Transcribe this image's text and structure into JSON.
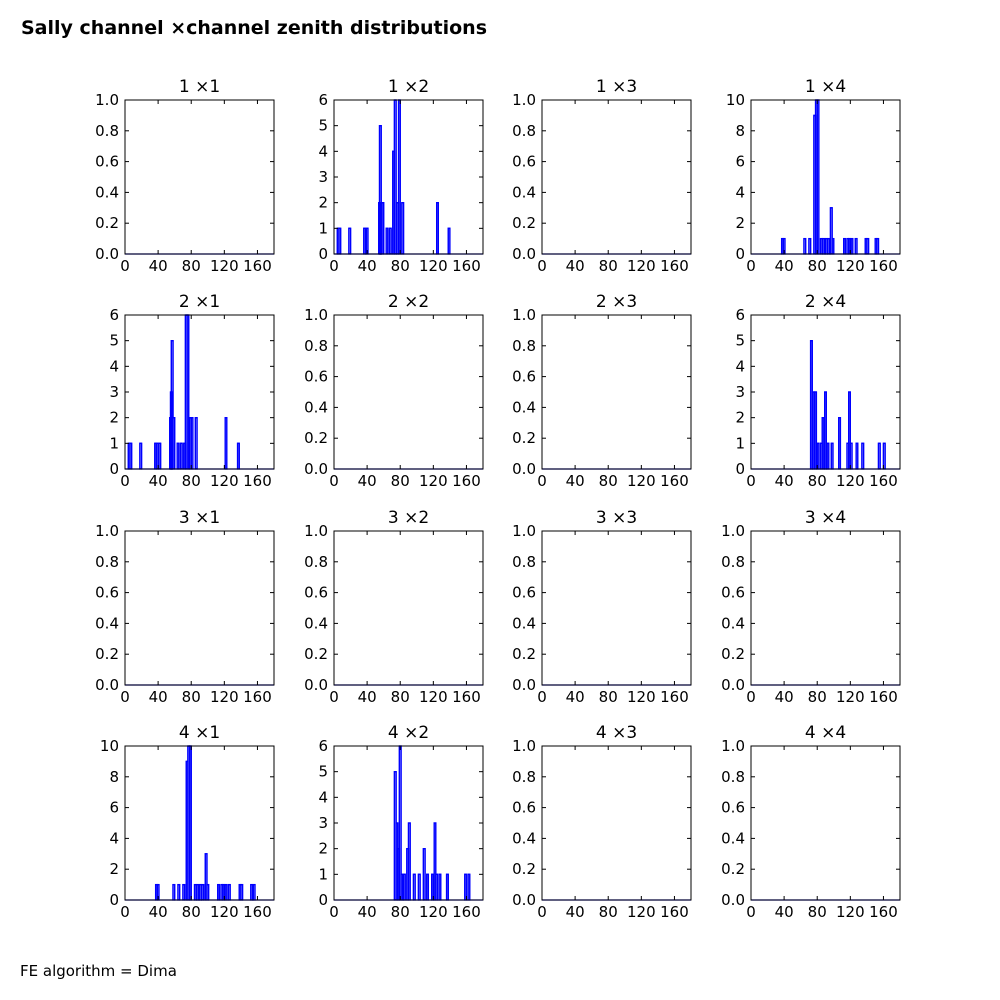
{
  "figure": {
    "title": "Sally channel ×channel zenith distributions",
    "footer": "FE algorithm = Dima",
    "series_color": "#0000ff"
  },
  "chart_data": [
    {
      "type": "histogram",
      "title": "1  ×1",
      "xticks": [
        "0",
        "40",
        "80",
        "120",
        "160"
      ],
      "xlim": [
        0,
        180
      ],
      "ylim": [
        0,
        1
      ],
      "yticks": [
        "0.0",
        "0.2",
        "0.4",
        "0.6",
        "0.8",
        "1.0"
      ],
      "bins": []
    },
    {
      "type": "histogram",
      "title": "1  ×2",
      "xticks": [
        "0",
        "40",
        "80",
        "120",
        "160"
      ],
      "xlim": [
        0,
        180
      ],
      "ylim": [
        0,
        6
      ],
      "yticks": [
        "0",
        "1",
        "2",
        "3",
        "4",
        "5",
        "6"
      ],
      "bins": [
        [
          4,
          1
        ],
        [
          6,
          1
        ],
        [
          18,
          1
        ],
        [
          36,
          1
        ],
        [
          39,
          1
        ],
        [
          54,
          2
        ],
        [
          55,
          5
        ],
        [
          56,
          2
        ],
        [
          58,
          2
        ],
        [
          63,
          1
        ],
        [
          67,
          1
        ],
        [
          71,
          4
        ],
        [
          73,
          6
        ],
        [
          76,
          2
        ],
        [
          78,
          6
        ],
        [
          82,
          2
        ],
        [
          124,
          2
        ],
        [
          138,
          1
        ]
      ]
    },
    {
      "type": "histogram",
      "title": "1  ×3",
      "xticks": [
        "0",
        "40",
        "80",
        "120",
        "160"
      ],
      "xlim": [
        0,
        180
      ],
      "ylim": [
        0,
        1
      ],
      "yticks": [
        "0.0",
        "0.2",
        "0.4",
        "0.6",
        "0.8",
        "1.0"
      ],
      "bins": []
    },
    {
      "type": "histogram",
      "title": "1  ×4",
      "xticks": [
        "0",
        "40",
        "80",
        "120",
        "160"
      ],
      "xlim": [
        0,
        180
      ],
      "ylim": [
        0,
        10
      ],
      "yticks": [
        "0",
        "2",
        "4",
        "6",
        "8",
        "10"
      ],
      "bins": [
        [
          37,
          1
        ],
        [
          39,
          1
        ],
        [
          64,
          1
        ],
        [
          70,
          1
        ],
        [
          76,
          9
        ],
        [
          78,
          10
        ],
        [
          80,
          10
        ],
        [
          84,
          1
        ],
        [
          87,
          1
        ],
        [
          90,
          1
        ],
        [
          93,
          1
        ],
        [
          96,
          3
        ],
        [
          98,
          1
        ],
        [
          112,
          1
        ],
        [
          116,
          1
        ],
        [
          118,
          1
        ],
        [
          121,
          1
        ],
        [
          126,
          1
        ],
        [
          138,
          1
        ],
        [
          140,
          1
        ],
        [
          150,
          1
        ],
        [
          152,
          1
        ]
      ]
    },
    {
      "type": "histogram",
      "title": "2  ×1",
      "xticks": [
        "0",
        "40",
        "80",
        "120",
        "160"
      ],
      "xlim": [
        0,
        180
      ],
      "ylim": [
        0,
        6
      ],
      "yticks": [
        "0",
        "1",
        "2",
        "3",
        "4",
        "5",
        "6"
      ],
      "bins": [
        [
          4,
          1
        ],
        [
          6,
          1
        ],
        [
          18,
          1
        ],
        [
          36,
          1
        ],
        [
          38,
          1
        ],
        [
          41,
          1
        ],
        [
          54,
          2
        ],
        [
          55,
          3
        ],
        [
          56,
          5
        ],
        [
          58,
          2
        ],
        [
          63,
          1
        ],
        [
          67,
          1
        ],
        [
          71,
          1
        ],
        [
          73,
          6
        ],
        [
          75,
          6
        ],
        [
          78,
          2
        ],
        [
          80,
          2
        ],
        [
          85,
          2
        ],
        [
          121,
          2
        ],
        [
          136,
          1
        ]
      ]
    },
    {
      "type": "histogram",
      "title": "2  ×2",
      "xticks": [
        "0",
        "40",
        "80",
        "120",
        "160"
      ],
      "xlim": [
        0,
        180
      ],
      "ylim": [
        0,
        1
      ],
      "yticks": [
        "0.0",
        "0.2",
        "0.4",
        "0.6",
        "0.8",
        "1.0"
      ],
      "bins": []
    },
    {
      "type": "histogram",
      "title": "2  ×3",
      "xticks": [
        "0",
        "40",
        "80",
        "120",
        "160"
      ],
      "xlim": [
        0,
        180
      ],
      "ylim": [
        0,
        1
      ],
      "yticks": [
        "0.0",
        "0.2",
        "0.4",
        "0.6",
        "0.8",
        "1.0"
      ],
      "bins": []
    },
    {
      "type": "histogram",
      "title": "2  ×4",
      "xticks": [
        "0",
        "40",
        "80",
        "120",
        "160"
      ],
      "xlim": [
        0,
        180
      ],
      "ylim": [
        0,
        6
      ],
      "yticks": [
        "0",
        "1",
        "2",
        "3",
        "4",
        "5",
        "6"
      ],
      "bins": [
        [
          72,
          5
        ],
        [
          75,
          3
        ],
        [
          77,
          3
        ],
        [
          80,
          1
        ],
        [
          84,
          1
        ],
        [
          86,
          2
        ],
        [
          89,
          3
        ],
        [
          92,
          1
        ],
        [
          97,
          1
        ],
        [
          106,
          2
        ],
        [
          116,
          1
        ],
        [
          118,
          3
        ],
        [
          120,
          1
        ],
        [
          127,
          1
        ],
        [
          134,
          1
        ],
        [
          154,
          1
        ],
        [
          160,
          1
        ]
      ]
    },
    {
      "type": "histogram",
      "title": "3  ×1",
      "xticks": [
        "0",
        "40",
        "80",
        "120",
        "160"
      ],
      "xlim": [
        0,
        180
      ],
      "ylim": [
        0,
        1
      ],
      "yticks": [
        "0.0",
        "0.2",
        "0.4",
        "0.6",
        "0.8",
        "1.0"
      ],
      "bins": []
    },
    {
      "type": "histogram",
      "title": "3  ×2",
      "xticks": [
        "0",
        "40",
        "80",
        "120",
        "160"
      ],
      "xlim": [
        0,
        180
      ],
      "ylim": [
        0,
        1
      ],
      "yticks": [
        "0.0",
        "0.2",
        "0.4",
        "0.6",
        "0.8",
        "1.0"
      ],
      "bins": []
    },
    {
      "type": "histogram",
      "title": "3  ×3",
      "xticks": [
        "0",
        "40",
        "80",
        "120",
        "160"
      ],
      "xlim": [
        0,
        180
      ],
      "ylim": [
        0,
        1
      ],
      "yticks": [
        "0.0",
        "0.2",
        "0.4",
        "0.6",
        "0.8",
        "1.0"
      ],
      "bins": []
    },
    {
      "type": "histogram",
      "title": "3  ×4",
      "xticks": [
        "0",
        "40",
        "80",
        "120",
        "160"
      ],
      "xlim": [
        0,
        180
      ],
      "ylim": [
        0,
        1
      ],
      "yticks": [
        "0.0",
        "0.2",
        "0.4",
        "0.6",
        "0.8",
        "1.0"
      ],
      "bins": []
    },
    {
      "type": "histogram",
      "title": "4  ×1",
      "xticks": [
        "0",
        "40",
        "80",
        "120",
        "160"
      ],
      "xlim": [
        0,
        180
      ],
      "ylim": [
        0,
        10
      ],
      "yticks": [
        "0",
        "2",
        "4",
        "6",
        "8",
        "10"
      ],
      "bins": [
        [
          37,
          1
        ],
        [
          39,
          1
        ],
        [
          58,
          1
        ],
        [
          64,
          1
        ],
        [
          70,
          1
        ],
        [
          74,
          9
        ],
        [
          76,
          10
        ],
        [
          78,
          10
        ],
        [
          84,
          1
        ],
        [
          87,
          1
        ],
        [
          90,
          1
        ],
        [
          93,
          1
        ],
        [
          97,
          3
        ],
        [
          99,
          1
        ],
        [
          112,
          1
        ],
        [
          116,
          1
        ],
        [
          118,
          1
        ],
        [
          121,
          1
        ],
        [
          125,
          1
        ],
        [
          138,
          1
        ],
        [
          140,
          1
        ],
        [
          152,
          1
        ],
        [
          155,
          1
        ]
      ]
    },
    {
      "type": "histogram",
      "title": "4  ×2",
      "xticks": [
        "0",
        "40",
        "80",
        "120",
        "160"
      ],
      "xlim": [
        0,
        180
      ],
      "ylim": [
        0,
        6
      ],
      "yticks": [
        "0",
        "1",
        "2",
        "3",
        "4",
        "5",
        "6"
      ],
      "bins": [
        [
          73,
          5
        ],
        [
          75,
          3
        ],
        [
          77,
          2
        ],
        [
          79,
          6
        ],
        [
          81,
          1
        ],
        [
          84,
          1
        ],
        [
          88,
          2
        ],
        [
          90,
          3
        ],
        [
          96,
          1
        ],
        [
          102,
          1
        ],
        [
          108,
          2
        ],
        [
          112,
          1
        ],
        [
          118,
          1
        ],
        [
          121,
          3
        ],
        [
          123,
          1
        ],
        [
          127,
          1
        ],
        [
          136,
          1
        ],
        [
          158,
          1
        ],
        [
          162,
          1
        ]
      ]
    },
    {
      "type": "histogram",
      "title": "4  ×3",
      "xticks": [
        "0",
        "40",
        "80",
        "120",
        "160"
      ],
      "xlim": [
        0,
        180
      ],
      "ylim": [
        0,
        1
      ],
      "yticks": [
        "0.0",
        "0.2",
        "0.4",
        "0.6",
        "0.8",
        "1.0"
      ],
      "bins": []
    },
    {
      "type": "histogram",
      "title": "4  ×4",
      "xticks": [
        "0",
        "40",
        "80",
        "120",
        "160"
      ],
      "xlim": [
        0,
        180
      ],
      "ylim": [
        0,
        1
      ],
      "yticks": [
        "0.0",
        "0.2",
        "0.4",
        "0.6",
        "0.8",
        "1.0"
      ],
      "bins": []
    }
  ]
}
